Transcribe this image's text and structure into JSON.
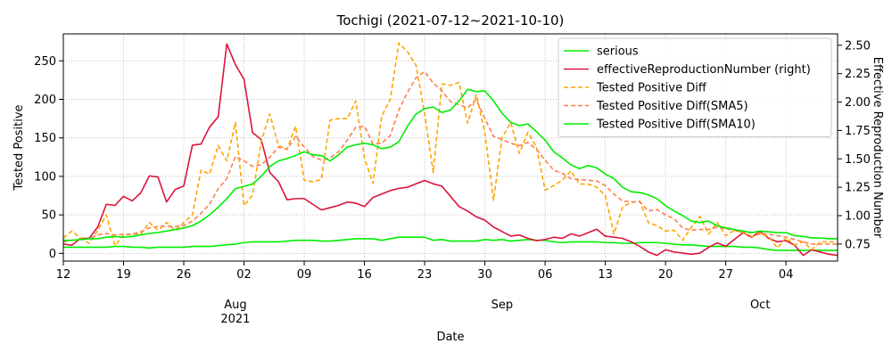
{
  "chart_data": {
    "type": "line",
    "title": "Tochigi (2021-07-12~2021-10-10)",
    "xlabel": "Date",
    "ylabel": "Tested Positive",
    "ylabel_right": "Effective Reproduction Number",
    "x_range": [
      "2021-07-12",
      "2021-10-10"
    ],
    "ylim": [
      -10,
      285
    ],
    "ylim_right": [
      0.6,
      2.6
    ],
    "grid": true,
    "legend_position": "top-right",
    "x_ticks": [
      {
        "date": "2021-07-12",
        "label": "12"
      },
      {
        "date": "2021-07-19",
        "label": "19"
      },
      {
        "date": "2021-07-26",
        "label": "26"
      },
      {
        "date": "2021-08-02",
        "label": "02"
      },
      {
        "date": "2021-08-09",
        "label": "09"
      },
      {
        "date": "2021-08-16",
        "label": "16"
      },
      {
        "date": "2021-08-23",
        "label": "23"
      },
      {
        "date": "2021-08-30",
        "label": "30"
      },
      {
        "date": "2021-09-06",
        "label": "06"
      },
      {
        "date": "2021-09-13",
        "label": "13"
      },
      {
        "date": "2021-09-20",
        "label": "20"
      },
      {
        "date": "2021-09-27",
        "label": "27"
      },
      {
        "date": "2021-10-04",
        "label": "04"
      }
    ],
    "x_month_labels": [
      {
        "date": "2021-08-01",
        "label": "Aug"
      },
      {
        "date": "2021-09-01",
        "label": "Sep"
      },
      {
        "date": "2021-10-01",
        "label": "Oct"
      }
    ],
    "x_year_label": {
      "date": "2021-08-01",
      "label": "2021"
    },
    "y_ticks": [
      0,
      50,
      100,
      150,
      200,
      250
    ],
    "y_ticks_right": [
      0.75,
      1.0,
      1.25,
      1.5,
      1.75,
      2.0,
      2.25,
      2.5
    ],
    "series": [
      {
        "name": "serious",
        "axis": "left",
        "color": "#00ee00",
        "style": "solid",
        "values": [
          8,
          8,
          8,
          8,
          8,
          8,
          9,
          9,
          8,
          8,
          7,
          8,
          8,
          8,
          8,
          9,
          9,
          9,
          10,
          11,
          12,
          14,
          15,
          15,
          15,
          15,
          16,
          17,
          17,
          17,
          16,
          16,
          17,
          18,
          19,
          19,
          19,
          17,
          19,
          21,
          21,
          21,
          21,
          17,
          18,
          16,
          16,
          16,
          16,
          18,
          17,
          18,
          16,
          17,
          18,
          17,
          17,
          15,
          14,
          15,
          15,
          15,
          15,
          14,
          14,
          13,
          13,
          14,
          14,
          14,
          13,
          12,
          11,
          11,
          10,
          9,
          9,
          9,
          9,
          8,
          8,
          7,
          5,
          4,
          4,
          4,
          4,
          4,
          4,
          4,
          4
        ]
      },
      {
        "name": "effectiveReproductionNumber (right)",
        "axis": "right",
        "color": "#dc143c",
        "style": "solid",
        "values": [
          0.75,
          0.74,
          0.8,
          0.8,
          0.9,
          1.1,
          1.09,
          1.17,
          1.13,
          1.2,
          1.35,
          1.34,
          1.12,
          1.23,
          1.26,
          1.62,
          1.63,
          1.78,
          1.87,
          2.51,
          2.33,
          2.2,
          1.73,
          1.67,
          1.38,
          1.3,
          1.14,
          1.15,
          1.15,
          1.1,
          1.05,
          1.07,
          1.09,
          1.12,
          1.11,
          1.08,
          1.16,
          1.19,
          1.22,
          1.24,
          1.25,
          1.28,
          1.31,
          1.28,
          1.26,
          1.17,
          1.08,
          1.04,
          0.99,
          0.96,
          0.9,
          0.86,
          0.82,
          0.83,
          0.8,
          0.78,
          0.79,
          0.81,
          0.8,
          0.84,
          0.82,
          0.85,
          0.88,
          0.82,
          0.81,
          0.8,
          0.77,
          0.73,
          0.68,
          0.65,
          0.7,
          0.68,
          0.67,
          0.66,
          0.67,
          0.72,
          0.76,
          0.73,
          0.79,
          0.85,
          0.81,
          0.86,
          0.8,
          0.77,
          0.78,
          0.74,
          0.65,
          0.7,
          0.68,
          0.66,
          0.65
        ]
      },
      {
        "name": "Tested Positive Diff",
        "axis": "left",
        "color": "#ffa500",
        "style": "dashed",
        "values": [
          20,
          29,
          20,
          13,
          30,
          50,
          10,
          24,
          25,
          25,
          40,
          30,
          40,
          30,
          40,
          50,
          108,
          103,
          140,
          120,
          170,
          62,
          76,
          145,
          181,
          140,
          135,
          165,
          95,
          93,
          96,
          173,
          175,
          175,
          198,
          124,
          91,
          178,
          200,
          273,
          262,
          244,
          181,
          105,
          220,
          218,
          222,
          169,
          206,
          157,
          69,
          150,
          170,
          130,
          157,
          138,
          82,
          88,
          95,
          107,
          90,
          90,
          86,
          75,
          25,
          60,
          66,
          68,
          40,
          36,
          29,
          30,
          17,
          34,
          48,
          25,
          40,
          23,
          30,
          27,
          22,
          25,
          22,
          7,
          20,
          11,
          15,
          5,
          15,
          15,
          15
        ]
      },
      {
        "name": "Tested Positive Diff(SMA5)",
        "axis": "left",
        "color": "#ff7f50",
        "style": "dashed",
        "values": [
          15,
          17,
          18,
          19,
          24,
          26,
          24,
          25,
          25,
          28,
          33,
          35,
          35,
          35,
          36,
          42,
          52,
          64,
          84,
          97,
          126,
          120,
          113,
          115,
          125,
          138,
          135,
          152,
          138,
          126,
          121,
          124,
          132,
          147,
          164,
          165,
          142,
          143,
          153,
          186,
          209,
          228,
          236,
          221,
          211,
          197,
          193,
          189,
          200,
          175,
          152,
          148,
          143,
          140,
          144,
          135,
          121,
          108,
          104,
          97,
          96,
          95,
          94,
          88,
          77,
          68,
          67,
          67,
          55,
          57,
          50,
          45,
          33,
          30,
          31,
          31,
          34,
          32,
          30,
          27,
          27,
          26,
          25,
          23,
          21,
          18,
          15,
          12,
          12,
          12,
          12
        ]
      },
      {
        "name": "Tested Positive Diff(SMA10)",
        "axis": "left",
        "color": "#00ee00",
        "style": "solid",
        "values": [
          17,
          17,
          18,
          19,
          19,
          21,
          22,
          21,
          22,
          24,
          26,
          27,
          29,
          31,
          33,
          36,
          42,
          50,
          60,
          71,
          84,
          87,
          90,
          100,
          113,
          120,
          123,
          127,
          132,
          128,
          127,
          120,
          128,
          138,
          141,
          143,
          141,
          136,
          138,
          145,
          165,
          181,
          188,
          190,
          183,
          186,
          198,
          213,
          210,
          211,
          198,
          182,
          170,
          166,
          168,
          158,
          147,
          132,
          124,
          115,
          110,
          114,
          111,
          103,
          97,
          86,
          80,
          79,
          76,
          71,
          62,
          55,
          49,
          42,
          40,
          42,
          36,
          33,
          31,
          29,
          27,
          29,
          28,
          27,
          27,
          23,
          22,
          20,
          20,
          19,
          19
        ]
      }
    ]
  }
}
